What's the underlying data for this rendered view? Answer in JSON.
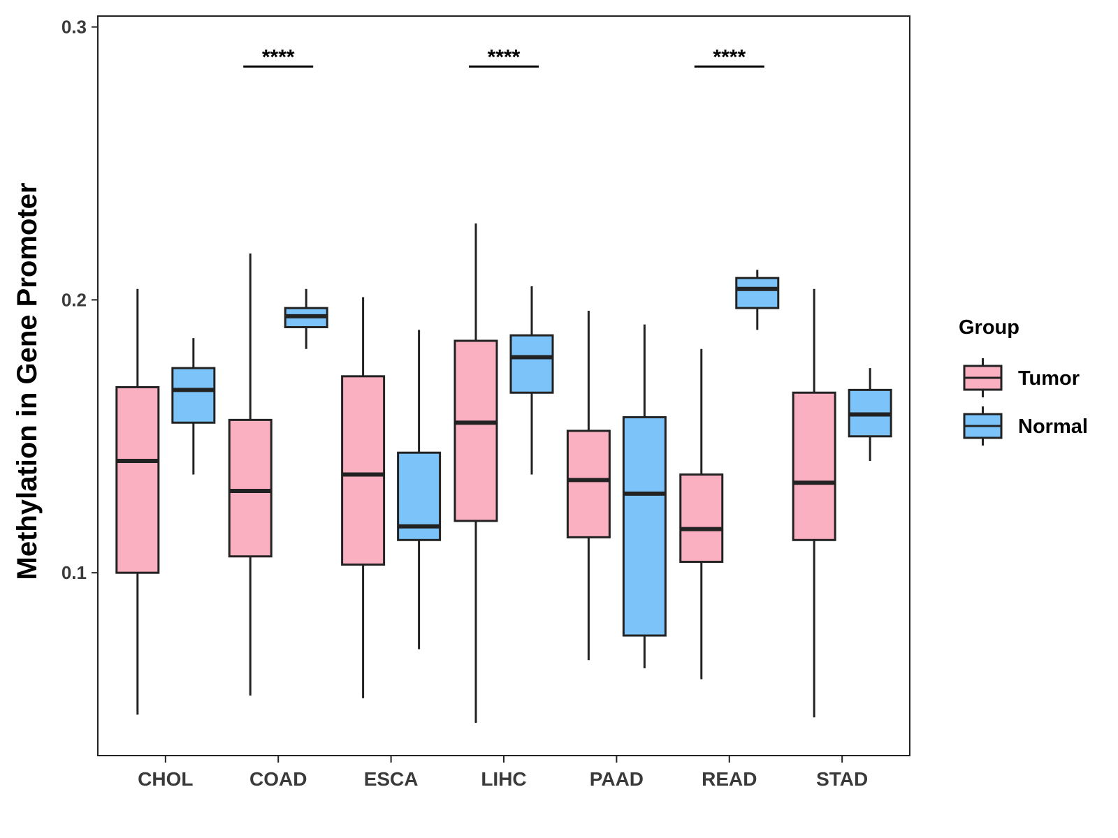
{
  "chart_data": {
    "type": "boxplot",
    "title": "",
    "xlabel": "",
    "ylabel": "Methylation in Gene Promoter",
    "ylim": [
      0.033,
      0.304
    ],
    "yticks": [
      0.1,
      0.2,
      0.3
    ],
    "ytick_labels": [
      "0.1",
      "0.2",
      "0.3"
    ],
    "grid": false,
    "categories": [
      "CHOL",
      "COAD",
      "ESCA",
      "LIHC",
      "PAAD",
      "READ",
      "STAD"
    ],
    "legend": {
      "title": "Group",
      "position": "right",
      "entries": [
        "Tumor",
        "Normal"
      ]
    },
    "series": [
      {
        "name": "Tumor",
        "color": "#FBB0C1",
        "boxes": [
          {
            "category": "CHOL",
            "min": 0.048,
            "q1": 0.1,
            "median": 0.141,
            "q3": 0.168,
            "max": 0.204
          },
          {
            "category": "COAD",
            "min": 0.055,
            "q1": 0.106,
            "median": 0.13,
            "q3": 0.156,
            "max": 0.217
          },
          {
            "category": "ESCA",
            "min": 0.054,
            "q1": 0.103,
            "median": 0.136,
            "q3": 0.172,
            "max": 0.201
          },
          {
            "category": "LIHC",
            "min": 0.045,
            "q1": 0.119,
            "median": 0.155,
            "q3": 0.185,
            "max": 0.228
          },
          {
            "category": "PAAD",
            "min": 0.068,
            "q1": 0.113,
            "median": 0.134,
            "q3": 0.152,
            "max": 0.196
          },
          {
            "category": "READ",
            "min": 0.061,
            "q1": 0.104,
            "median": 0.116,
            "q3": 0.136,
            "max": 0.182
          },
          {
            "category": "STAD",
            "min": 0.047,
            "q1": 0.112,
            "median": 0.133,
            "q3": 0.166,
            "max": 0.204
          }
        ]
      },
      {
        "name": "Normal",
        "color": "#7BC3F8",
        "boxes": [
          {
            "category": "CHOL",
            "min": 0.136,
            "q1": 0.155,
            "median": 0.167,
            "q3": 0.175,
            "max": 0.186
          },
          {
            "category": "COAD",
            "min": 0.182,
            "q1": 0.19,
            "median": 0.194,
            "q3": 0.197,
            "max": 0.204
          },
          {
            "category": "ESCA",
            "min": 0.072,
            "q1": 0.112,
            "median": 0.117,
            "q3": 0.144,
            "max": 0.189
          },
          {
            "category": "LIHC",
            "min": 0.136,
            "q1": 0.166,
            "median": 0.179,
            "q3": 0.187,
            "max": 0.205
          },
          {
            "category": "PAAD",
            "min": 0.065,
            "q1": 0.077,
            "median": 0.129,
            "q3": 0.157,
            "max": 0.191
          },
          {
            "category": "READ",
            "min": 0.189,
            "q1": 0.197,
            "median": 0.204,
            "q3": 0.208,
            "max": 0.211
          },
          {
            "category": "STAD",
            "min": 0.141,
            "q1": 0.15,
            "median": 0.158,
            "q3": 0.167,
            "max": 0.175
          }
        ]
      }
    ],
    "annotations": [
      {
        "category": "COAD",
        "text": "****",
        "y": 0.2855
      },
      {
        "category": "LIHC",
        "text": "****",
        "y": 0.2855
      },
      {
        "category": "READ",
        "text": "****",
        "y": 0.2855
      }
    ]
  }
}
